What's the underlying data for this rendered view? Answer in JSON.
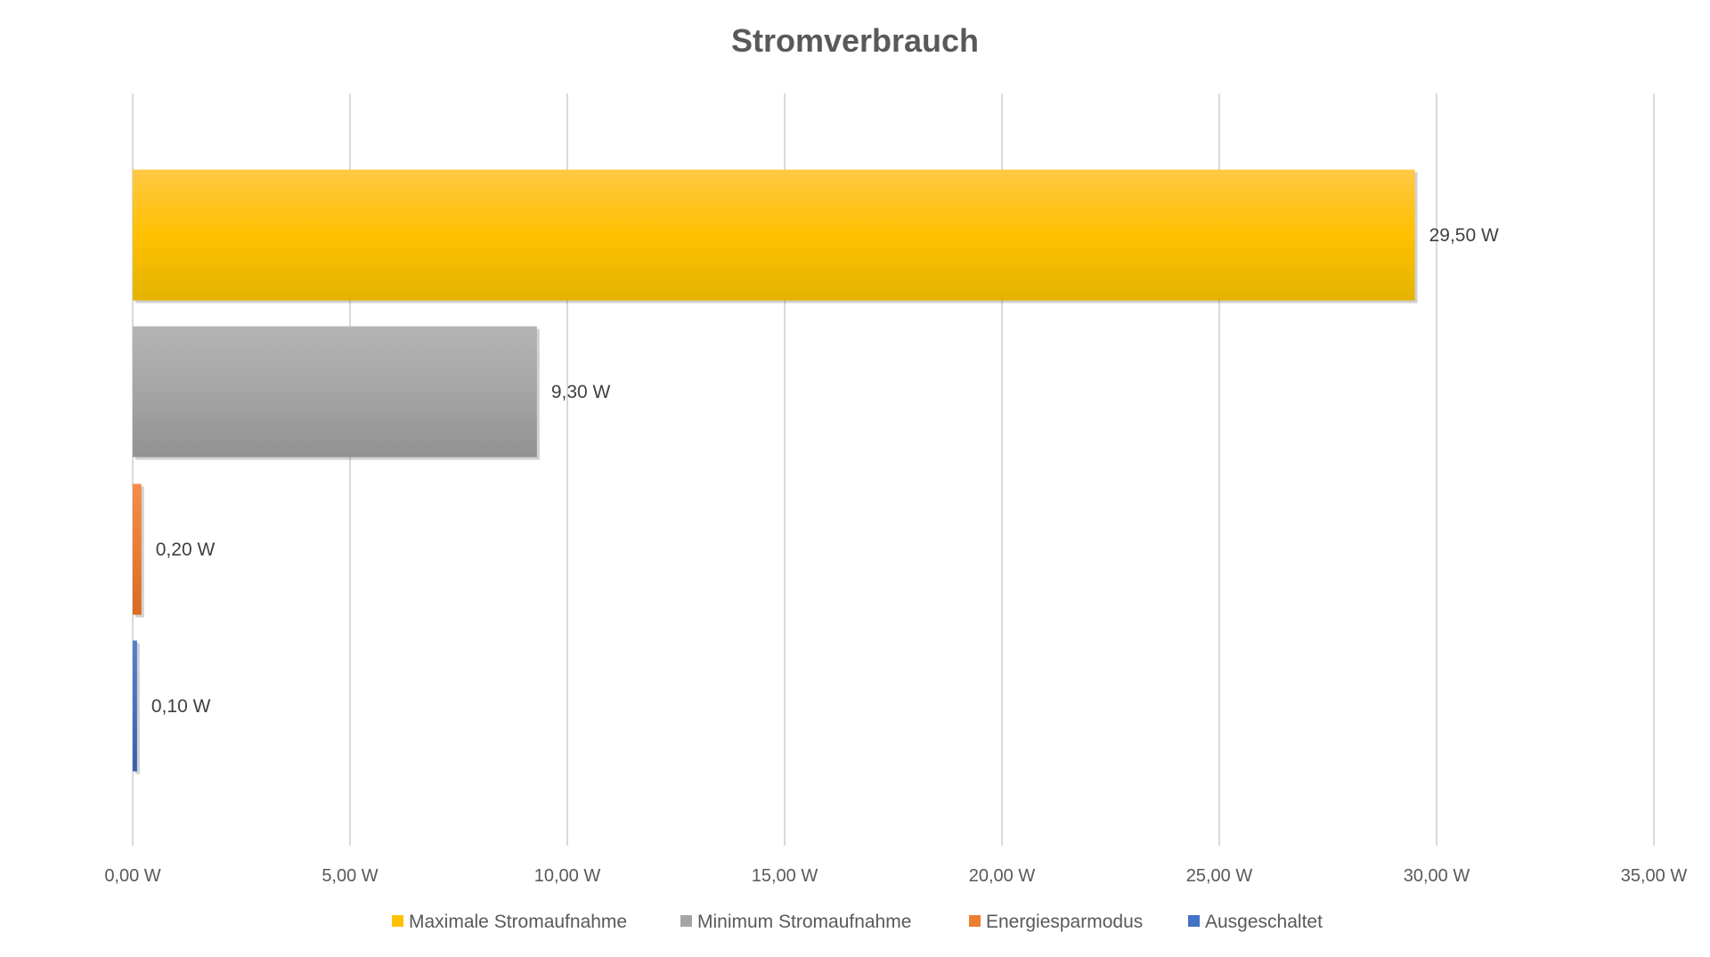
{
  "chart_data": {
    "type": "bar",
    "orientation": "horizontal",
    "title": "Stromverbrauch",
    "xlabel": "",
    "ylabel": "",
    "xlim": [
      0,
      35
    ],
    "x_ticks": [
      "0,00 W",
      "5,00 W",
      "10,00 W",
      "15,00 W",
      "20,00 W",
      "25,00 W",
      "30,00 W",
      "35,00 W"
    ],
    "grid": true,
    "legend_position": "bottom",
    "series": [
      {
        "name": "Maximale Stromaufnahme",
        "value": 29.5,
        "label": "29,50 W",
        "color": "#FFC000",
        "top": "#FFC845",
        "bottom": "#E3B300"
      },
      {
        "name": "Minimum Stromaufnahme",
        "value": 9.3,
        "label": "9,30 W",
        "color": "#A5A5A5",
        "top": "#B4B4B4",
        "bottom": "#929292"
      },
      {
        "name": "Energiesparmodus",
        "value": 0.2,
        "label": "0,20 W",
        "color": "#ED7D31",
        "top": "#F48C4A",
        "bottom": "#D96A20"
      },
      {
        "name": "Ausgeschaltet",
        "value": 0.1,
        "label": "0,10 W",
        "color": "#4472C4",
        "top": "#5580CC",
        "bottom": "#3560B0"
      }
    ]
  }
}
